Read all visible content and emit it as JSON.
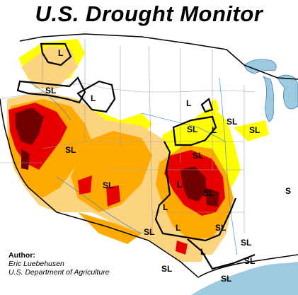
{
  "title": "U.S. Drought Monitor",
  "credit": {
    "label": "Author:",
    "name": "Eric Luebehusen",
    "org": "U.S. Department of Agriculture"
  },
  "impact_labels": [
    "L",
    "SL"
  ],
  "colors": {
    "water": "#9ecae1",
    "land": "#ffffff",
    "d0_abnormally_dry": "#ffff00",
    "d1_moderate": "#fcd37f",
    "d2_severe": "#ffaa00",
    "d3_extreme": "#e60000",
    "d4_exceptional": "#730000",
    "boundaries": "#9e9e9e",
    "rivers": "#3d7fd0"
  }
}
